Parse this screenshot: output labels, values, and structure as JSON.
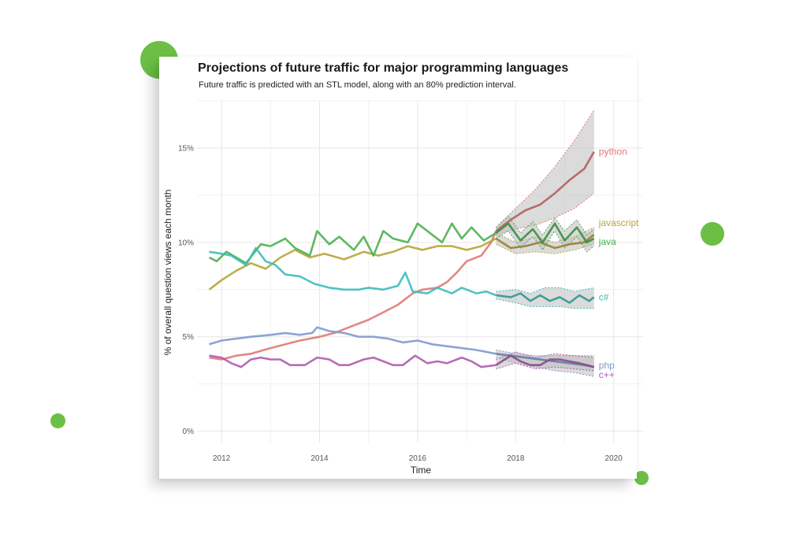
{
  "decor": {
    "accent": "#6cbf45"
  },
  "chart_data": {
    "type": "line",
    "title": "Projections of future traffic for major programming languages",
    "subtitle": "Future traffic is predicted with an STL model, along with an 80% prediction interval.",
    "xlabel": "Time",
    "ylabel": "% of overall question views each month",
    "xlim": [
      2011.5,
      2020.6
    ],
    "ylim": [
      -0.6,
      17.5
    ],
    "x_ticks": [
      2012,
      2014,
      2016,
      2018,
      2020
    ],
    "x_tick_labels": [
      "2012",
      "2014",
      "2016",
      "2018",
      "2020"
    ],
    "y_ticks": [
      0,
      5,
      10,
      15
    ],
    "y_tick_labels": [
      "0%",
      "5%",
      "10%",
      "15%"
    ],
    "grid": true,
    "legend": "direct-labels-right",
    "forecast_start": 2017.6,
    "forecast_band_color": "#bdbdbd",
    "series": [
      {
        "name": "python",
        "color": "#e07a76",
        "points": [
          [
            2011.75,
            3.9
          ],
          [
            2012.0,
            3.8
          ],
          [
            2012.3,
            4.0
          ],
          [
            2012.6,
            4.1
          ],
          [
            2013.0,
            4.4
          ],
          [
            2013.3,
            4.6
          ],
          [
            2013.6,
            4.8
          ],
          [
            2014.0,
            5.0
          ],
          [
            2014.3,
            5.2
          ],
          [
            2014.6,
            5.5
          ],
          [
            2015.0,
            5.9
          ],
          [
            2015.3,
            6.3
          ],
          [
            2015.6,
            6.7
          ],
          [
            2015.9,
            7.3
          ],
          [
            2016.1,
            7.5
          ],
          [
            2016.4,
            7.6
          ],
          [
            2016.6,
            7.9
          ],
          [
            2016.8,
            8.4
          ],
          [
            2017.0,
            9.0
          ],
          [
            2017.3,
            9.3
          ],
          [
            2017.5,
            10.0
          ],
          [
            2017.6,
            10.6
          ]
        ],
        "forecast": [
          [
            2017.6,
            10.6
          ],
          [
            2017.9,
            11.2
          ],
          [
            2018.2,
            11.7
          ],
          [
            2018.5,
            12.0
          ],
          [
            2018.8,
            12.6
          ],
          [
            2019.1,
            13.3
          ],
          [
            2019.4,
            13.9
          ],
          [
            2019.6,
            14.8
          ]
        ],
        "lower": [
          [
            2017.6,
            10.4
          ],
          [
            2018.0,
            10.7
          ],
          [
            2018.4,
            10.9
          ],
          [
            2018.8,
            11.3
          ],
          [
            2019.2,
            11.8
          ],
          [
            2019.6,
            12.6
          ]
        ],
        "upper": [
          [
            2017.6,
            10.8
          ],
          [
            2018.0,
            11.8
          ],
          [
            2018.4,
            12.8
          ],
          [
            2018.8,
            14.0
          ],
          [
            2019.2,
            15.4
          ],
          [
            2019.6,
            17.0
          ]
        ]
      },
      {
        "name": "javascript",
        "color": "#b8a43a",
        "points": [
          [
            2011.75,
            7.5
          ],
          [
            2012.0,
            8.0
          ],
          [
            2012.3,
            8.5
          ],
          [
            2012.6,
            8.9
          ],
          [
            2012.9,
            8.6
          ],
          [
            2013.2,
            9.2
          ],
          [
            2013.5,
            9.6
          ],
          [
            2013.8,
            9.2
          ],
          [
            2014.1,
            9.4
          ],
          [
            2014.5,
            9.1
          ],
          [
            2014.9,
            9.5
          ],
          [
            2015.2,
            9.3
          ],
          [
            2015.5,
            9.5
          ],
          [
            2015.8,
            9.8
          ],
          [
            2016.1,
            9.6
          ],
          [
            2016.4,
            9.8
          ],
          [
            2016.7,
            9.8
          ],
          [
            2017.0,
            9.6
          ],
          [
            2017.3,
            9.8
          ],
          [
            2017.6,
            10.2
          ]
        ],
        "forecast": [
          [
            2017.6,
            10.2
          ],
          [
            2017.9,
            9.7
          ],
          [
            2018.2,
            9.8
          ],
          [
            2018.5,
            10.0
          ],
          [
            2018.8,
            9.7
          ],
          [
            2019.1,
            9.9
          ],
          [
            2019.4,
            10.0
          ],
          [
            2019.6,
            10.4
          ]
        ],
        "lower": [
          [
            2017.6,
            9.9
          ],
          [
            2018.0,
            9.4
          ],
          [
            2018.4,
            9.5
          ],
          [
            2018.8,
            9.4
          ],
          [
            2019.2,
            9.6
          ],
          [
            2019.6,
            9.9
          ]
        ],
        "upper": [
          [
            2017.6,
            10.5
          ],
          [
            2018.0,
            10.0
          ],
          [
            2018.4,
            10.3
          ],
          [
            2018.8,
            10.0
          ],
          [
            2019.2,
            10.3
          ],
          [
            2019.6,
            10.8
          ]
        ]
      },
      {
        "name": "java",
        "color": "#4caf50",
        "points": [
          [
            2011.75,
            9.2
          ],
          [
            2011.9,
            9.0
          ],
          [
            2012.1,
            9.5
          ],
          [
            2012.3,
            9.2
          ],
          [
            2012.5,
            8.9
          ],
          [
            2012.8,
            9.9
          ],
          [
            2013.0,
            9.8
          ],
          [
            2013.3,
            10.2
          ],
          [
            2013.5,
            9.7
          ],
          [
            2013.8,
            9.3
          ],
          [
            2013.95,
            10.6
          ],
          [
            2014.2,
            9.9
          ],
          [
            2014.4,
            10.3
          ],
          [
            2014.7,
            9.6
          ],
          [
            2014.9,
            10.3
          ],
          [
            2015.1,
            9.3
          ],
          [
            2015.3,
            10.6
          ],
          [
            2015.5,
            10.2
          ],
          [
            2015.8,
            10.0
          ],
          [
            2016.0,
            11.0
          ],
          [
            2016.25,
            10.5
          ],
          [
            2016.5,
            10.0
          ],
          [
            2016.7,
            11.0
          ],
          [
            2016.9,
            10.2
          ],
          [
            2017.1,
            10.8
          ],
          [
            2017.35,
            10.1
          ],
          [
            2017.6,
            10.5
          ]
        ],
        "forecast": [
          [
            2017.6,
            10.5
          ],
          [
            2017.85,
            11.0
          ],
          [
            2018.1,
            10.1
          ],
          [
            2018.35,
            10.7
          ],
          [
            2018.55,
            10.0
          ],
          [
            2018.8,
            11.0
          ],
          [
            2019.0,
            10.1
          ],
          [
            2019.25,
            10.8
          ],
          [
            2019.45,
            10.0
          ],
          [
            2019.6,
            10.2
          ]
        ],
        "lower": [
          [
            2017.6,
            10.2
          ],
          [
            2017.85,
            10.6
          ],
          [
            2018.1,
            9.7
          ],
          [
            2018.35,
            10.3
          ],
          [
            2018.55,
            9.6
          ],
          [
            2018.8,
            10.6
          ],
          [
            2019.0,
            9.7
          ],
          [
            2019.25,
            10.3
          ],
          [
            2019.45,
            9.5
          ],
          [
            2019.6,
            9.8
          ]
        ],
        "upper": [
          [
            2017.6,
            10.8
          ],
          [
            2017.85,
            11.4
          ],
          [
            2018.1,
            10.5
          ],
          [
            2018.35,
            11.1
          ],
          [
            2018.55,
            10.4
          ],
          [
            2018.8,
            11.3
          ],
          [
            2019.0,
            10.6
          ],
          [
            2019.25,
            11.2
          ],
          [
            2019.45,
            10.4
          ],
          [
            2019.6,
            10.7
          ]
        ]
      },
      {
        "name": "c#",
        "color": "#3dbdb8",
        "points": [
          [
            2011.75,
            9.5
          ],
          [
            2012.0,
            9.4
          ],
          [
            2012.2,
            9.3
          ],
          [
            2012.5,
            8.8
          ],
          [
            2012.7,
            9.7
          ],
          [
            2012.9,
            9.0
          ],
          [
            2013.1,
            8.8
          ],
          [
            2013.3,
            8.3
          ],
          [
            2013.6,
            8.2
          ],
          [
            2013.9,
            7.8
          ],
          [
            2014.2,
            7.6
          ],
          [
            2014.5,
            7.5
          ],
          [
            2014.8,
            7.5
          ],
          [
            2015.0,
            7.6
          ],
          [
            2015.3,
            7.5
          ],
          [
            2015.6,
            7.7
          ],
          [
            2015.75,
            8.4
          ],
          [
            2015.9,
            7.4
          ],
          [
            2016.2,
            7.3
          ],
          [
            2016.4,
            7.6
          ],
          [
            2016.7,
            7.3
          ],
          [
            2016.9,
            7.6
          ],
          [
            2017.2,
            7.3
          ],
          [
            2017.4,
            7.4
          ],
          [
            2017.6,
            7.2
          ]
        ],
        "forecast": [
          [
            2017.6,
            7.2
          ],
          [
            2017.9,
            7.1
          ],
          [
            2018.1,
            7.3
          ],
          [
            2018.3,
            6.9
          ],
          [
            2018.5,
            7.2
          ],
          [
            2018.7,
            6.9
          ],
          [
            2018.9,
            7.1
          ],
          [
            2019.1,
            6.8
          ],
          [
            2019.3,
            7.2
          ],
          [
            2019.5,
            6.9
          ],
          [
            2019.6,
            7.1
          ]
        ],
        "lower": [
          [
            2017.6,
            7.0
          ],
          [
            2018.0,
            6.8
          ],
          [
            2018.3,
            6.6
          ],
          [
            2018.6,
            6.6
          ],
          [
            2018.9,
            6.6
          ],
          [
            2019.2,
            6.5
          ],
          [
            2019.6,
            6.5
          ]
        ],
        "upper": [
          [
            2017.6,
            7.4
          ],
          [
            2018.0,
            7.5
          ],
          [
            2018.3,
            7.3
          ],
          [
            2018.6,
            7.6
          ],
          [
            2018.9,
            7.6
          ],
          [
            2019.2,
            7.4
          ],
          [
            2019.6,
            7.6
          ]
        ]
      },
      {
        "name": "php",
        "color": "#7f9acf",
        "points": [
          [
            2011.75,
            4.6
          ],
          [
            2012.0,
            4.8
          ],
          [
            2012.3,
            4.9
          ],
          [
            2012.6,
            5.0
          ],
          [
            2013.0,
            5.1
          ],
          [
            2013.3,
            5.2
          ],
          [
            2013.6,
            5.1
          ],
          [
            2013.85,
            5.2
          ],
          [
            2013.95,
            5.5
          ],
          [
            2014.2,
            5.3
          ],
          [
            2014.5,
            5.2
          ],
          [
            2014.8,
            5.0
          ],
          [
            2015.1,
            5.0
          ],
          [
            2015.4,
            4.9
          ],
          [
            2015.7,
            4.7
          ],
          [
            2016.0,
            4.8
          ],
          [
            2016.3,
            4.6
          ],
          [
            2016.6,
            4.5
          ],
          [
            2016.9,
            4.4
          ],
          [
            2017.2,
            4.3
          ],
          [
            2017.6,
            4.1
          ]
        ],
        "forecast": [
          [
            2017.6,
            4.1
          ],
          [
            2017.9,
            4.0
          ],
          [
            2018.2,
            3.9
          ],
          [
            2018.5,
            3.8
          ],
          [
            2018.8,
            3.7
          ],
          [
            2019.1,
            3.6
          ],
          [
            2019.4,
            3.5
          ],
          [
            2019.6,
            3.4
          ]
        ],
        "lower": [
          [
            2017.6,
            3.9
          ],
          [
            2018.0,
            3.6
          ],
          [
            2018.4,
            3.4
          ],
          [
            2018.8,
            3.2
          ],
          [
            2019.2,
            3.1
          ],
          [
            2019.6,
            2.9
          ]
        ],
        "upper": [
          [
            2017.6,
            4.3
          ],
          [
            2018.0,
            4.1
          ],
          [
            2018.4,
            4.0
          ],
          [
            2018.8,
            4.0
          ],
          [
            2019.2,
            4.0
          ],
          [
            2019.6,
            4.0
          ]
        ]
      },
      {
        "name": "c++",
        "color": "#b05bb0",
        "points": [
          [
            2011.75,
            4.0
          ],
          [
            2012.0,
            3.9
          ],
          [
            2012.2,
            3.6
          ],
          [
            2012.4,
            3.4
          ],
          [
            2012.6,
            3.8
          ],
          [
            2012.8,
            3.9
          ],
          [
            2013.0,
            3.8
          ],
          [
            2013.2,
            3.8
          ],
          [
            2013.4,
            3.5
          ],
          [
            2013.7,
            3.5
          ],
          [
            2013.95,
            3.9
          ],
          [
            2014.2,
            3.8
          ],
          [
            2014.4,
            3.5
          ],
          [
            2014.6,
            3.5
          ],
          [
            2014.9,
            3.8
          ],
          [
            2015.1,
            3.9
          ],
          [
            2015.3,
            3.7
          ],
          [
            2015.5,
            3.5
          ],
          [
            2015.7,
            3.5
          ],
          [
            2015.95,
            4.0
          ],
          [
            2016.2,
            3.6
          ],
          [
            2016.4,
            3.7
          ],
          [
            2016.6,
            3.6
          ],
          [
            2016.9,
            3.9
          ],
          [
            2017.1,
            3.7
          ],
          [
            2017.3,
            3.4
          ],
          [
            2017.6,
            3.5
          ]
        ],
        "forecast": [
          [
            2017.6,
            3.5
          ],
          [
            2017.9,
            4.0
          ],
          [
            2018.1,
            3.7
          ],
          [
            2018.3,
            3.5
          ],
          [
            2018.5,
            3.5
          ],
          [
            2018.7,
            3.8
          ],
          [
            2018.9,
            3.8
          ],
          [
            2019.1,
            3.7
          ],
          [
            2019.3,
            3.6
          ],
          [
            2019.6,
            3.4
          ]
        ],
        "lower": [
          [
            2017.6,
            3.3
          ],
          [
            2018.0,
            3.6
          ],
          [
            2018.4,
            3.3
          ],
          [
            2018.8,
            3.4
          ],
          [
            2019.2,
            3.3
          ],
          [
            2019.6,
            3.2
          ]
        ],
        "upper": [
          [
            2017.6,
            3.8
          ],
          [
            2018.0,
            4.2
          ],
          [
            2018.4,
            3.9
          ],
          [
            2018.8,
            4.1
          ],
          [
            2019.2,
            4.0
          ],
          [
            2019.6,
            3.9
          ]
        ]
      }
    ],
    "label_positions_note": "labels placed at series end"
  }
}
